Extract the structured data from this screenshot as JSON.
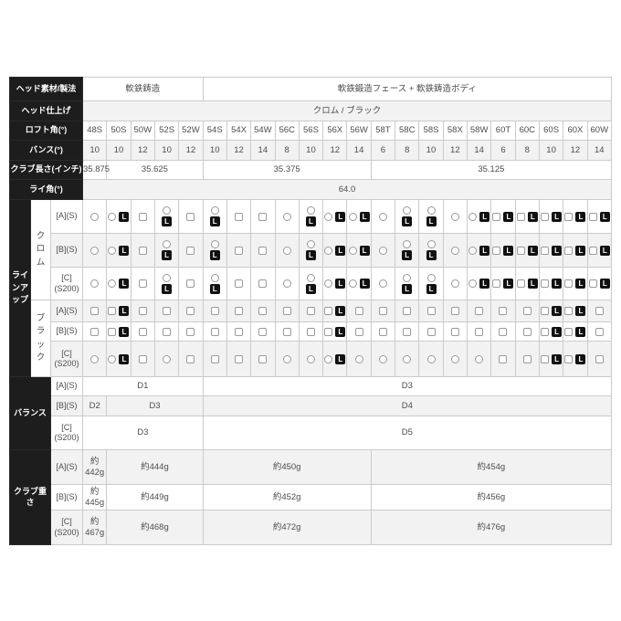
{
  "table": {
    "columns": [
      "48S",
      "50S",
      "50W",
      "52S",
      "52W",
      "54S",
      "54X",
      "54W",
      "56C",
      "56S",
      "56X",
      "56W",
      "58T",
      "58C",
      "58S",
      "58X",
      "58W",
      "60T",
      "60C",
      "60S",
      "60X",
      "60W"
    ],
    "head_material": {
      "label": "ヘッド素材/製法",
      "cells": [
        {
          "text": "軟鉄鋳造",
          "span": 5
        },
        {
          "text": "軟鉄鍛造フェース + 軟鉄鋳造ボディ",
          "span": 17
        }
      ]
    },
    "head_finish": {
      "label": "ヘッド仕上げ",
      "cells": [
        {
          "text": "クロム / ブラック",
          "span": 22
        }
      ]
    },
    "loft_angle": {
      "label": "ロフト角(°)",
      "values": [
        "48S",
        "50S",
        "50W",
        "52S",
        "52W",
        "54S",
        "54X",
        "54W",
        "56C",
        "56S",
        "56X",
        "56W",
        "58T",
        "58C",
        "58S",
        "58X",
        "58W",
        "60T",
        "60C",
        "60S",
        "60X",
        "60W"
      ]
    },
    "bounce": {
      "label": "バンス(°)",
      "values": [
        10,
        10,
        12,
        10,
        12,
        10,
        12,
        14,
        8,
        10,
        12,
        14,
        6,
        8,
        10,
        12,
        14,
        6,
        8,
        10,
        12,
        14
      ]
    },
    "club_length": {
      "label": "クラブ長さ(インチ)",
      "cells": [
        {
          "text": "35.875",
          "span": 1
        },
        {
          "text": "35.625",
          "span": 4
        },
        {
          "text": "35.375",
          "span": 7
        },
        {
          "text": "35.125",
          "span": 10
        }
      ]
    },
    "lie_angle": {
      "label": "ライ角(°)",
      "cells": [
        {
          "text": "64.0",
          "span": 22
        }
      ]
    },
    "lineup": {
      "label": "ラインアップ",
      "badge": "L",
      "mark_legend": {
        "o": "circle",
        "s": "square",
        "L": "left-hand badge",
        "v": "stacked layout"
      },
      "groups": [
        {
          "label": "クロム",
          "rows": [
            {
              "label": [
                "[A](S)"
              ],
              "marks": [
                "o",
                "oL",
                "s",
                "oLv",
                "s",
                "oLv",
                "s",
                "s",
                "o",
                "oLv",
                "oL",
                "oL",
                "o",
                "oLv",
                "oLv",
                "o",
                "oL",
                "sL",
                "sL",
                "sL",
                "sL",
                "sL"
              ]
            },
            {
              "label": [
                "[B](S)"
              ],
              "marks": [
                "o",
                "oL",
                "s",
                "oLv",
                "s",
                "oLv",
                "s",
                "s",
                "o",
                "oLv",
                "oL",
                "oL",
                "o",
                "oLv",
                "oLv",
                "o",
                "oL",
                "sL",
                "sL",
                "sL",
                "sL",
                "sL"
              ]
            },
            {
              "label": [
                "[C]",
                "(S200)"
              ],
              "marks": [
                "o",
                "oL",
                "s",
                "oLv",
                "s",
                "oLv",
                "s",
                "s",
                "o",
                "oLv",
                "oL",
                "oL",
                "o",
                "oLv",
                "oLv",
                "o",
                "oL",
                "sL",
                "sL",
                "sL",
                "sL",
                "sL"
              ]
            }
          ]
        },
        {
          "label": "ブラック",
          "rows": [
            {
              "label": [
                "[A](S)"
              ],
              "marks": [
                "s",
                "sL",
                "s",
                "s",
                "s",
                "s",
                "s",
                "s",
                "s",
                "s",
                "sL",
                "s",
                "s",
                "s",
                "s",
                "s",
                "s",
                "s",
                "s",
                "sL",
                "sL",
                "s"
              ]
            },
            {
              "label": [
                "[B](S)"
              ],
              "marks": [
                "s",
                "sL",
                "s",
                "s",
                "s",
                "s",
                "s",
                "s",
                "s",
                "s",
                "sL",
                "s",
                "s",
                "s",
                "s",
                "s",
                "s",
                "s",
                "s",
                "sL",
                "sL",
                "s"
              ]
            },
            {
              "label": [
                "[C]",
                "(S200)"
              ],
              "marks": [
                "o",
                "oL",
                "s",
                "o",
                "s",
                "s",
                "s",
                "s",
                "o",
                "o",
                "oL",
                "o",
                "o",
                "o",
                "o",
                "o",
                "o",
                "s",
                "s",
                "sL",
                "sL",
                "s"
              ]
            }
          ]
        }
      ]
    },
    "balance": {
      "label": "バランス",
      "rows": [
        {
          "label": [
            "[A](S)"
          ],
          "cells": [
            {
              "text": "D1",
              "span": 5
            },
            {
              "text": "D3",
              "span": 17
            }
          ]
        },
        {
          "label": [
            "[B](S)"
          ],
          "cells": [
            {
              "text": "D2",
              "span": 1
            },
            {
              "text": "D3",
              "span": 4
            },
            {
              "text": "D4",
              "span": 17
            }
          ]
        },
        {
          "label": [
            "[C]",
            "(S200)"
          ],
          "cells": [
            {
              "text": "D3",
              "span": 5
            },
            {
              "text": "D5",
              "span": 17
            }
          ]
        }
      ]
    },
    "weight": {
      "label": "クラブ重さ",
      "rows": [
        {
          "label": [
            "[A](S)"
          ],
          "cells": [
            {
              "lines": [
                "約",
                "442g"
              ],
              "span": 1
            },
            {
              "text": "約444g",
              "span": 4
            },
            {
              "text": "約450g",
              "span": 7
            },
            {
              "text": "約454g",
              "span": 10
            }
          ]
        },
        {
          "label": [
            "[B](S)"
          ],
          "cells": [
            {
              "lines": [
                "約",
                "445g"
              ],
              "span": 1
            },
            {
              "text": "約449g",
              "span": 4
            },
            {
              "text": "約452g",
              "span": 7
            },
            {
              "text": "約456g",
              "span": 10
            }
          ]
        },
        {
          "label": [
            "[C]",
            "(S200)"
          ],
          "cells": [
            {
              "lines": [
                "約",
                "467g"
              ],
              "span": 1
            },
            {
              "text": "約468g",
              "span": 4
            },
            {
              "text": "約472g",
              "span": 7
            },
            {
              "text": "約476g",
              "span": 10
            }
          ]
        }
      ]
    }
  }
}
